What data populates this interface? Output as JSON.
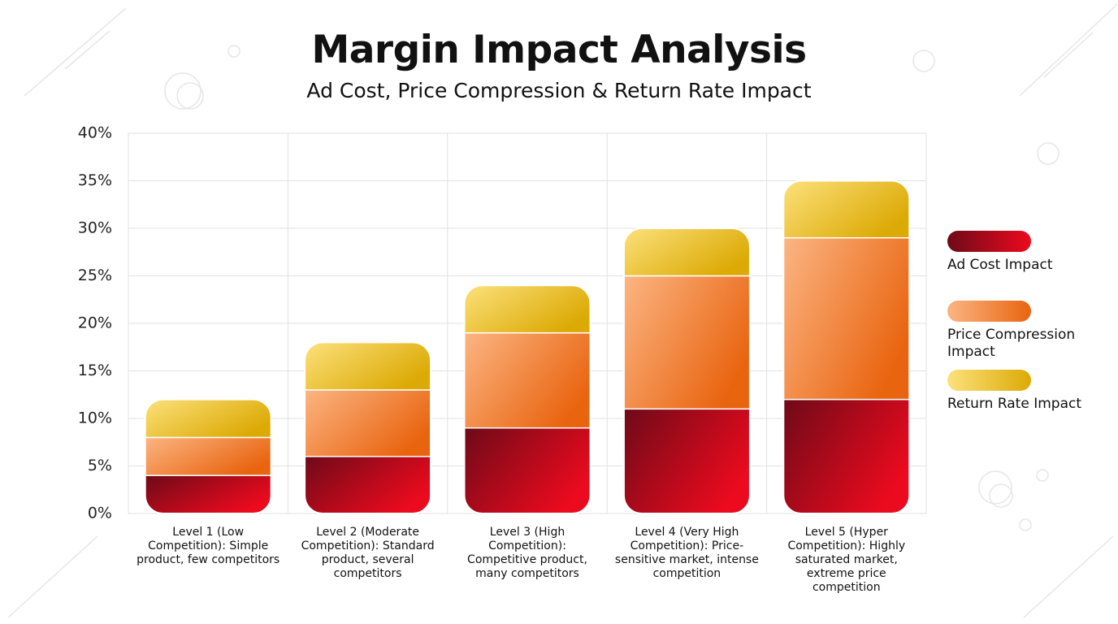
{
  "chart_data": {
    "type": "stacked-bar",
    "title": "Margin Impact Analysis",
    "subtitle": "Ad Cost, Price Compression & Return Rate Impact",
    "categories": [
      "Level 1 (Low Competition): Simple product, few competitors",
      "Level 2 (Moderate Competition): Standard product, several competitors",
      "Level 3 (High Competition): Competitive product, many competitors",
      "Level 4 (Very High Competition): Price-sensitive market, intense competition",
      "Level 5 (Hyper Competition): Highly saturated market, extreme price competition"
    ],
    "series": [
      {
        "name": "Ad Cost Impact",
        "gradient": [
          "#6e0a18",
          "#ec0a1e"
        ],
        "values": [
          4,
          6,
          9,
          11,
          12
        ]
      },
      {
        "name": "Price Compression Impact",
        "gradient": [
          "#fbb583",
          "#e9640f"
        ],
        "values": [
          4,
          7,
          10,
          14,
          17
        ]
      },
      {
        "name": "Return Rate Impact",
        "gradient": [
          "#fce17c",
          "#dcaa05"
        ],
        "values": [
          4,
          5,
          5,
          5,
          6
        ]
      }
    ],
    "ylim": [
      0,
      40
    ],
    "yticks": [
      {
        "value": 0,
        "label": "0%"
      },
      {
        "value": 5,
        "label": "5%"
      },
      {
        "value": 10,
        "label": "10%"
      },
      {
        "value": 15,
        "label": "15%"
      },
      {
        "value": 20,
        "label": "20%"
      },
      {
        "value": 25,
        "label": "25%"
      },
      {
        "value": 30,
        "label": "30%"
      },
      {
        "value": 35,
        "label": "35%"
      },
      {
        "value": 40,
        "label": "40%"
      }
    ],
    "grid": true,
    "legend": "right"
  }
}
